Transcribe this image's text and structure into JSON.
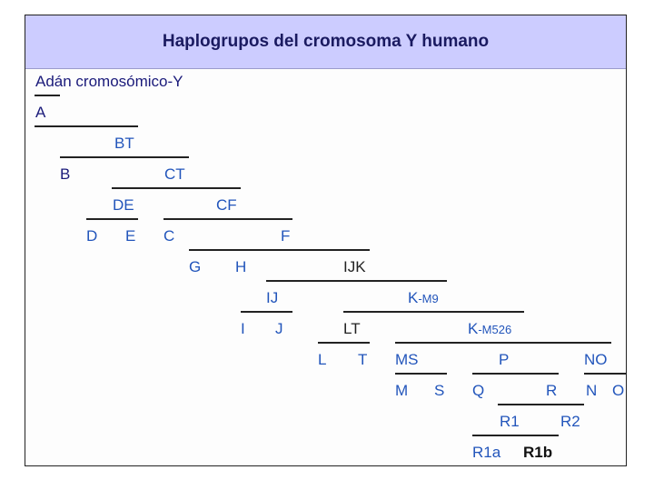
{
  "title": "Haplogrupos del cromosoma Y humano",
  "nodes": {
    "adam": "Adán cromosómico-Y",
    "A": "A",
    "BT": "BT",
    "B": "B",
    "CT": "CT",
    "DE": "DE",
    "CF": "CF",
    "D": "D",
    "E": "E",
    "C": "C",
    "F": "F",
    "G": "G",
    "H": "H",
    "IJK": "IJK",
    "IJ": "IJ",
    "K_M9_main": "K",
    "K_M9_sub": "-M9",
    "I": "I",
    "J": "J",
    "LT": "LT",
    "K_M526_main": "K",
    "K_M526_sub": "-M526",
    "L": "L",
    "T": "T",
    "MS": "MS",
    "P": "P",
    "NO": "NO",
    "M": "M",
    "S": "S",
    "Q": "Q",
    "R": "R",
    "N": "N",
    "O": "O",
    "R1": "R1",
    "R2": "R2",
    "R1a": "R1a",
    "R1b": "R1b"
  }
}
